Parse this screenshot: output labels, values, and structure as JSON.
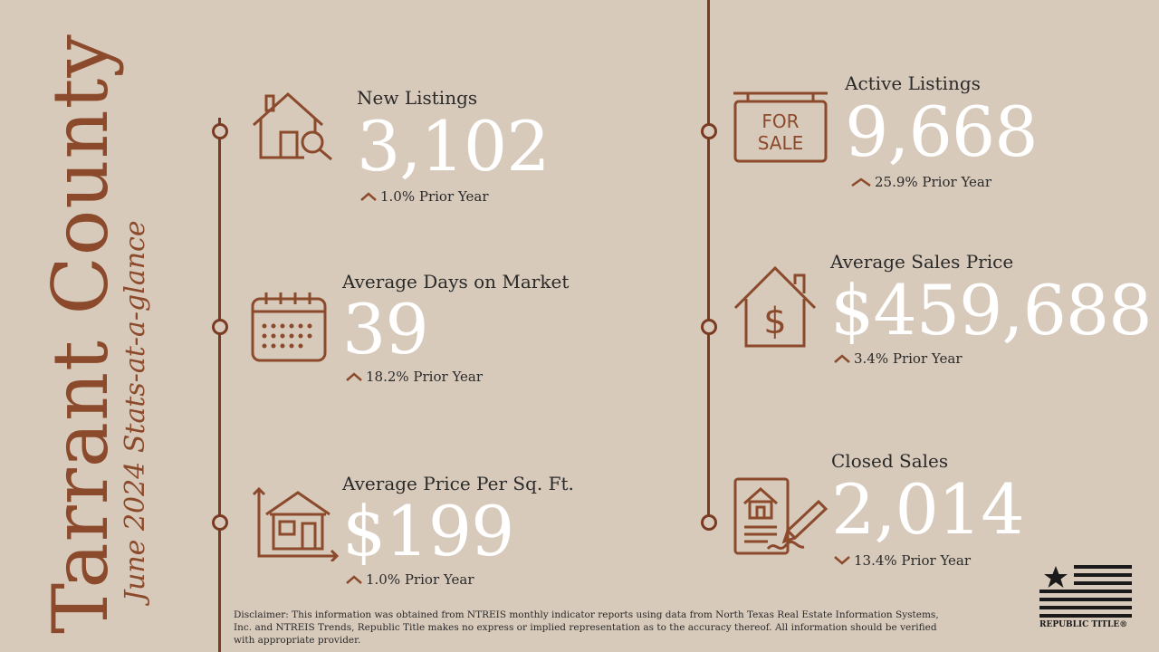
{
  "county": {
    "title": "Tarrant County",
    "subtitle": "June 2024 Stats-at-a-glance"
  },
  "stats": {
    "new_listings": {
      "label": "New Listings",
      "value": "3,102",
      "change": "1.0% Prior Year",
      "direction": "up",
      "icon": "house-search-icon"
    },
    "days_on_market": {
      "label": "Average Days on Market",
      "value": "39",
      "change": "18.2% Prior Year",
      "direction": "up",
      "icon": "calendar-icon"
    },
    "price_per_sqft": {
      "label": "Average Price Per Sq. Ft.",
      "value": "$199",
      "change": "1.0% Prior Year",
      "direction": "up",
      "icon": "house-area-icon"
    },
    "active_listings": {
      "label": "Active Listings",
      "value": "9,668",
      "change": "25.9% Prior Year",
      "direction": "up",
      "icon": "for-sale-sign-icon",
      "sign_line1": "FOR",
      "sign_line2": "SALE"
    },
    "avg_sales_price": {
      "label": "Average Sales Price",
      "value": "$459,688",
      "change": "3.4% Prior Year",
      "direction": "up",
      "icon": "house-dollar-icon"
    },
    "closed_sales": {
      "label": "Closed Sales",
      "value": "2,014",
      "change": "13.4% Prior Year",
      "direction": "down",
      "icon": "contract-sign-icon"
    }
  },
  "disclaimer": "Disclaimer: This information was obtained from NTREIS monthly indicator reports using data from North Texas Real Estate Information Systems, Inc. and NTREIS Trends, Republic Title makes no express or implied representation as to the accuracy thereof. All information should be verified with appropriate provider.",
  "brand": {
    "name": "REPUBLIC TITLE®"
  },
  "colors": {
    "background": "#d8cabb",
    "accent": "#8b4a2b",
    "value": "#ffffff"
  }
}
